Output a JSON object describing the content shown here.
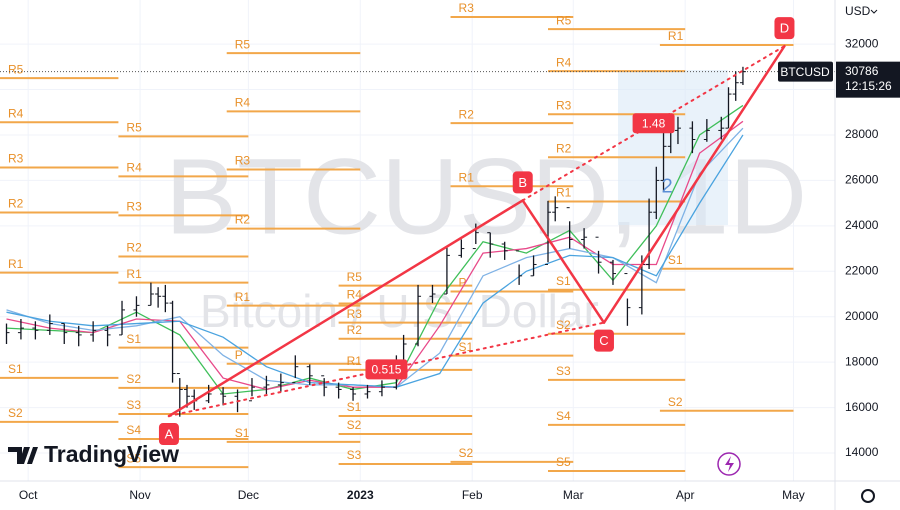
{
  "chart_data": {
    "type": "ohlc",
    "symbol": "BTCUSD",
    "watermark": "BTCUSD, 1D",
    "watermark_subtitle": "Bitcoin / U.S. Dollar",
    "brand": "TradingView",
    "currency": "USD",
    "last_price": 30786,
    "countdown": "12:15:26",
    "xlim": [
      -7.8,
      223.5
    ],
    "xticks": [
      {
        "value": 0,
        "label": "Oct"
      },
      {
        "value": 31,
        "label": "Nov"
      },
      {
        "value": 61,
        "label": "Dec"
      },
      {
        "value": 92,
        "label": "2023"
      },
      {
        "value": 123,
        "label": "Feb"
      },
      {
        "value": 151,
        "label": "Mar"
      },
      {
        "value": 182,
        "label": "Apr"
      },
      {
        "value": 212,
        "label": "May"
      }
    ],
    "ylim": [
      12770,
      33940
    ],
    "yticks": [
      14000,
      16000,
      18000,
      20000,
      22000,
      24000,
      26000,
      28000,
      30000,
      32000
    ],
    "x": [
      -6,
      -2,
      2,
      6,
      10,
      14,
      18,
      22,
      26,
      30,
      34,
      36,
      38,
      40,
      42,
      44,
      46,
      50,
      54,
      58,
      62,
      66,
      70,
      74,
      78,
      82,
      86,
      90,
      94,
      98,
      102,
      104,
      108,
      112,
      116,
      120,
      124,
      128,
      132,
      136,
      140,
      144,
      146,
      150,
      154,
      158,
      162,
      166,
      170,
      172,
      174,
      176,
      178,
      180,
      184,
      188,
      192,
      194,
      196,
      198
    ],
    "close": [
      19300,
      19500,
      19400,
      19700,
      19300,
      19200,
      19400,
      19200,
      20300,
      20500,
      21000,
      20900,
      20600,
      17500,
      16800,
      16500,
      16300,
      16600,
      16500,
      16300,
      16900,
      17000,
      17100,
      17800,
      17400,
      16900,
      16800,
      16600,
      16700,
      16900,
      17900,
      18800,
      20900,
      21000,
      22700,
      23000,
      23700,
      23200,
      22900,
      21800,
      22300,
      24600,
      24800,
      23400,
      23500,
      22400,
      21900,
      20400,
      22300,
      24600,
      26000,
      27500,
      28200,
      28300,
      27800,
      28200,
      28300,
      29800,
      30300,
      30786
    ],
    "high": [
      19700,
      19900,
      19800,
      20100,
      19700,
      19600,
      19800,
      19600,
      20700,
      20900,
      21500,
      21300,
      21400,
      20700,
      17300,
      17000,
      16800,
      17000,
      16900,
      16800,
      17300,
      17400,
      17500,
      18300,
      17900,
      17300,
      17100,
      16900,
      17000,
      17200,
      18300,
      19200,
      21400,
      21400,
      23100,
      23400,
      24100,
      23700,
      23300,
      22300,
      22700,
      25100,
      25300,
      24200,
      23900,
      22900,
      22500,
      20800,
      22700,
      25200,
      26600,
      28300,
      28900,
      28800,
      28600,
      28700,
      28800,
      30100,
      30800,
      31000
    ],
    "low": [
      18800,
      19000,
      19000,
      19200,
      18800,
      18700,
      18900,
      18700,
      19200,
      20000,
      20500,
      20400,
      20200,
      17100,
      15600,
      16000,
      15900,
      16200,
      16100,
      15800,
      16500,
      16600,
      16700,
      17300,
      17000,
      16500,
      16400,
      16300,
      16400,
      16500,
      16800,
      17700,
      18700,
      20600,
      21000,
      22600,
      23200,
      22600,
      22500,
      21400,
      21800,
      22400,
      24200,
      23000,
      23000,
      21900,
      21400,
      19600,
      20100,
      22100,
      24300,
      25500,
      27200,
      27600,
      27200,
      27700,
      27800,
      28300,
      29500,
      30200
    ],
    "bar_color": "#131722",
    "ma_x": [
      -6,
      6,
      18,
      30,
      42,
      54,
      66,
      78,
      90,
      102,
      114,
      126,
      138,
      150,
      162,
      174,
      186,
      198
    ],
    "moving_averages": [
      {
        "color": "#3fbf5a",
        "values": [
          19500,
          19400,
          19300,
          20200,
          19200,
          16600,
          16800,
          17300,
          16800,
          17100,
          20800,
          23300,
          22800,
          23800,
          21600,
          24000,
          28000,
          29300
        ]
      },
      {
        "color": "#e84a8a",
        "values": [
          19900,
          19500,
          19300,
          19900,
          19800,
          17300,
          16800,
          17200,
          16900,
          16900,
          19600,
          22800,
          23000,
          23500,
          22300,
          22300,
          27200,
          28600
        ]
      },
      {
        "color": "#7fb2e5",
        "values": [
          20300,
          19700,
          19400,
          19600,
          20000,
          18300,
          17200,
          17000,
          17000,
          16900,
          18400,
          21800,
          22600,
          23000,
          22600,
          21500,
          26300,
          28300
        ]
      },
      {
        "color": "#4aa3df",
        "values": [
          20200,
          19800,
          19600,
          19700,
          19800,
          19100,
          17800,
          17100,
          17000,
          16900,
          17500,
          20600,
          22000,
          22700,
          22600,
          21800,
          25000,
          28000
        ]
      }
    ],
    "pivot_color": "#f2a74a",
    "pivots": [
      {
        "from": -7.8,
        "to": 25,
        "levels": [
          {
            "label": "R5",
            "value": 30500
          },
          {
            "label": "R4",
            "value": 28560
          },
          {
            "label": "R3",
            "value": 26570
          },
          {
            "label": "R2",
            "value": 24590
          },
          {
            "label": "R1",
            "value": 21940
          },
          {
            "label": "S1",
            "value": 17310
          },
          {
            "label": "S2",
            "value": 15370
          }
        ]
      },
      {
        "from": 25,
        "to": 61,
        "levels": [
          {
            "label": "R5",
            "value": 27940
          },
          {
            "label": "R4",
            "value": 26180
          },
          {
            "label": "R3",
            "value": 24460
          },
          {
            "label": "R2",
            "value": 22650
          },
          {
            "label": "R1",
            "value": 21500
          },
          {
            "label": "S1",
            "value": 18640
          },
          {
            "label": "S2",
            "value": 16870
          },
          {
            "label": "S3",
            "value": 15720
          },
          {
            "label": "S4",
            "value": 14620
          },
          {
            "label": "S5",
            "value": 13380
          }
        ]
      },
      {
        "from": 55,
        "to": 92,
        "levels": [
          {
            "label": "R5",
            "value": 31600
          },
          {
            "label": "R4",
            "value": 29040
          },
          {
            "label": "R3",
            "value": 26480
          },
          {
            "label": "R2",
            "value": 23880
          },
          {
            "label": "R1",
            "value": 20490
          },
          {
            "label": "P",
            "value": 17930
          },
          {
            "label": "S1",
            "value": 14490
          }
        ]
      },
      {
        "from": 86,
        "to": 123,
        "levels": [
          {
            "label": "R5",
            "value": 21370
          },
          {
            "label": "R4",
            "value": 20580
          },
          {
            "label": "R3",
            "value": 19740
          },
          {
            "label": "R2",
            "value": 19030
          },
          {
            "label": "R1",
            "value": 17660
          },
          {
            "label": "S1",
            "value": 15630
          },
          {
            "label": "S2",
            "value": 14840
          },
          {
            "label": "S3",
            "value": 13520
          }
        ]
      },
      {
        "from": 117,
        "to": 151,
        "levels": [
          {
            "label": "R3",
            "value": 33190
          },
          {
            "label": "R2",
            "value": 28520
          },
          {
            "label": "R1",
            "value": 25740
          },
          {
            "label": "P",
            "value": 21110
          },
          {
            "label": "S1",
            "value": 18290
          },
          {
            "label": "S2",
            "value": 13610
          }
        ]
      },
      {
        "from": 144,
        "to": 182,
        "levels": [
          {
            "label": "R5",
            "value": 32660
          },
          {
            "label": "R4",
            "value": 30810
          },
          {
            "label": "R3",
            "value": 28910
          },
          {
            "label": "R2",
            "value": 27020
          },
          {
            "label": "R1",
            "value": 25070
          },
          {
            "label": "S1",
            "value": 21190
          },
          {
            "label": "S2",
            "value": 19250
          },
          {
            "label": "S3",
            "value": 17220
          },
          {
            "label": "S4",
            "value": 15240
          },
          {
            "label": "S5",
            "value": 13210
          }
        ]
      },
      {
        "from": 175,
        "to": 212,
        "levels": [
          {
            "label": "R1",
            "value": 31960
          },
          {
            "label": "S1",
            "value": 22110
          },
          {
            "label": "S2",
            "value": 15860
          }
        ]
      }
    ],
    "pattern_color": "#f23645",
    "pattern": [
      {
        "label": "A",
        "x": 39,
        "y": 15630
      },
      {
        "label": "B",
        "x": 137,
        "y": 25120
      },
      {
        "label": "C",
        "x": 159.5,
        "y": 19740
      },
      {
        "label": "D",
        "x": 209.5,
        "y": 31910
      }
    ],
    "ratios": [
      0.515,
      1.48
    ],
    "annotations": [
      {
        "text": "2",
        "x": 177,
        "y": 25700
      }
    ]
  }
}
